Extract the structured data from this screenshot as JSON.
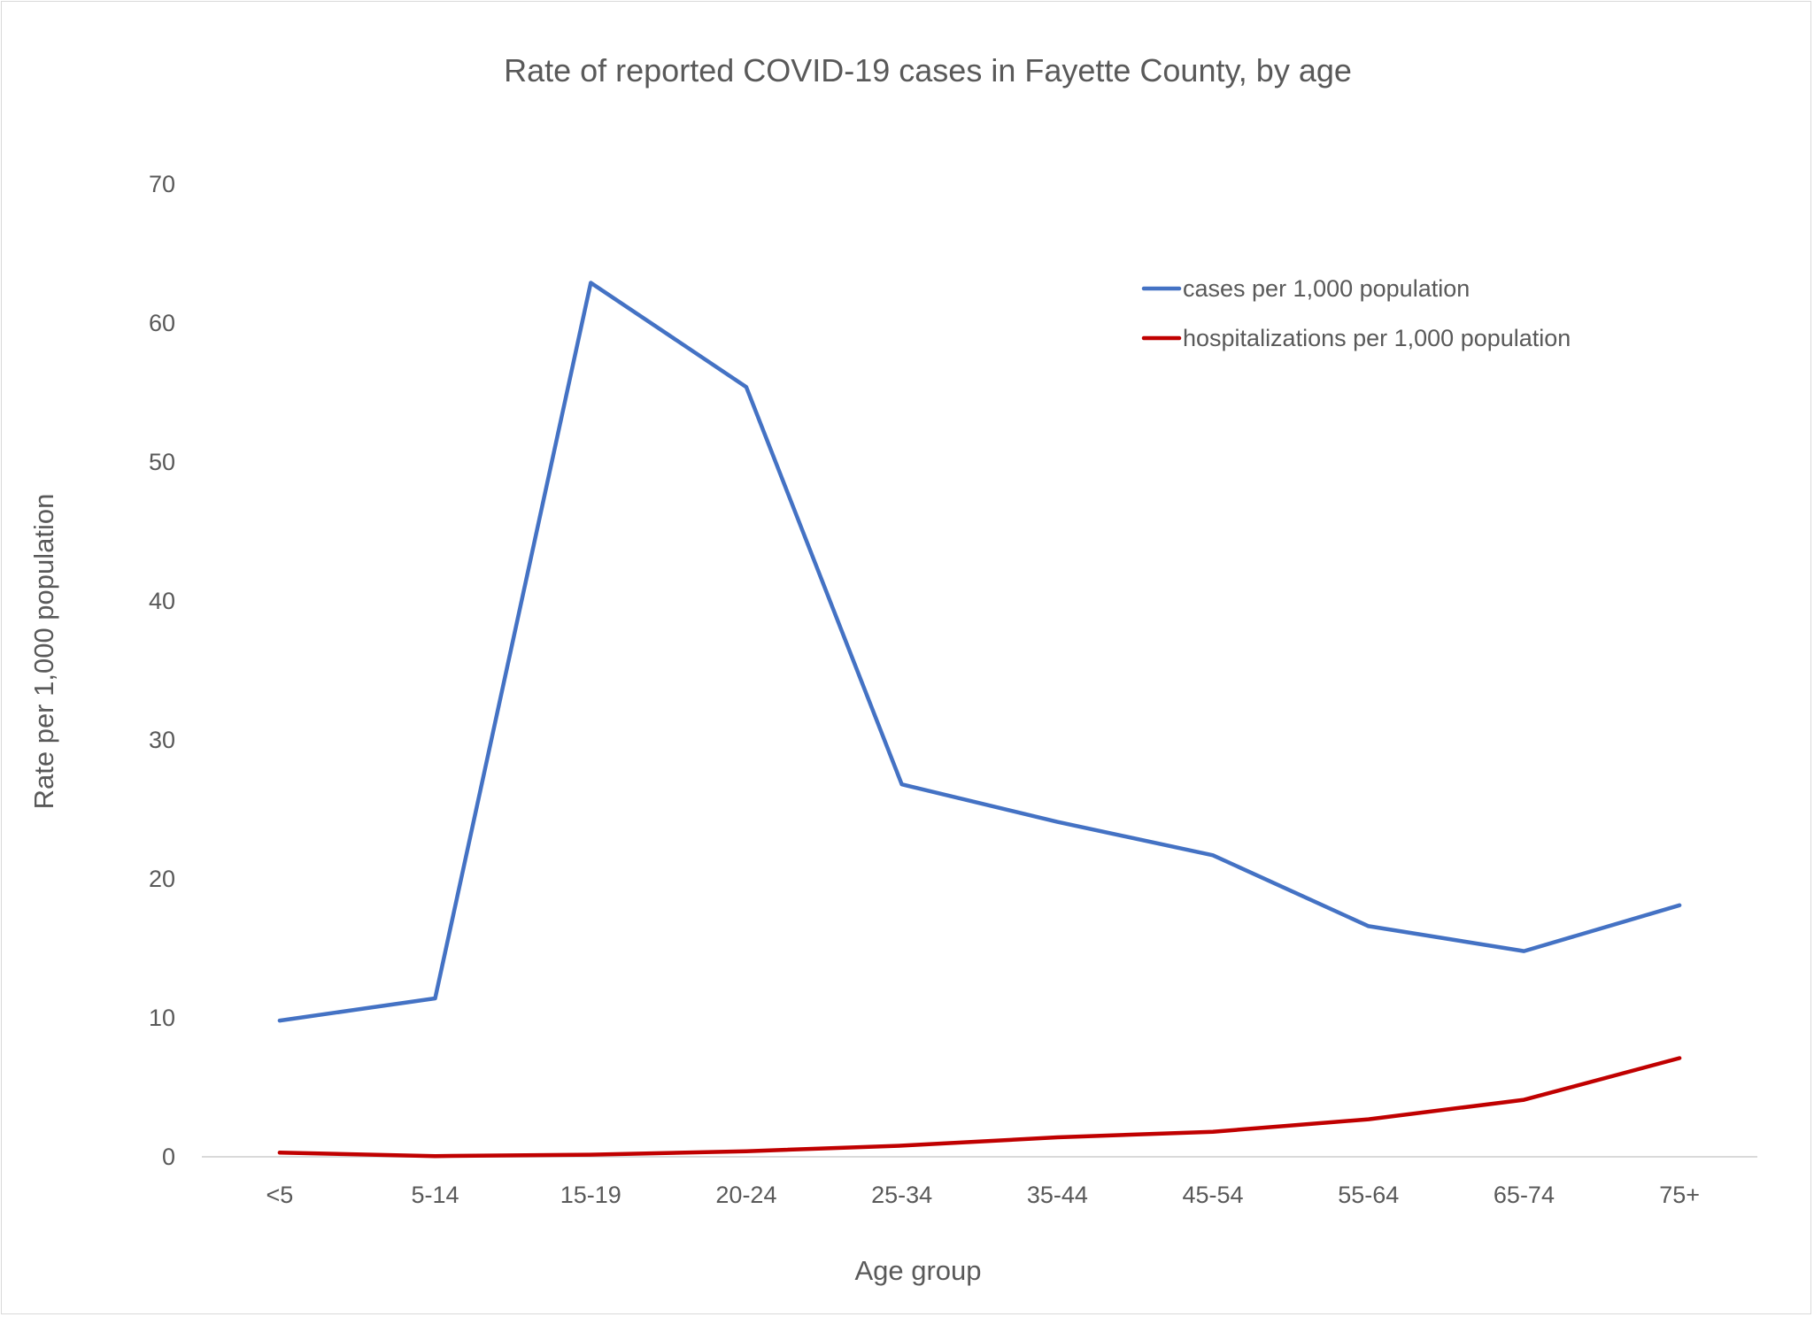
{
  "chart_data": {
    "type": "line",
    "title": "Rate of reported COVID-19 cases in Fayette County, by age",
    "xlabel": "Age group",
    "ylabel": "Rate per 1,000 population",
    "categories": [
      "<5",
      "5-14",
      "15-19",
      "20-24",
      "25-34",
      "35-44",
      "45-54",
      "55-64",
      "65-74",
      "75+"
    ],
    "ylim": [
      0,
      70
    ],
    "yticks": [
      0,
      10,
      20,
      30,
      40,
      50,
      60,
      70
    ],
    "grid": false,
    "legend_position": "top-right",
    "series": [
      {
        "name": "cases per 1,000 population",
        "color": "#4472c4",
        "values": [
          9.8,
          11.4,
          62.9,
          55.4,
          26.8,
          24.1,
          21.7,
          16.6,
          14.8,
          18.1
        ]
      },
      {
        "name": "hospitalizations per 1,000 population",
        "color": "#c00000",
        "values": [
          0.3,
          0.05,
          0.15,
          0.4,
          0.8,
          1.4,
          1.8,
          2.7,
          4.1,
          7.1
        ]
      }
    ]
  }
}
